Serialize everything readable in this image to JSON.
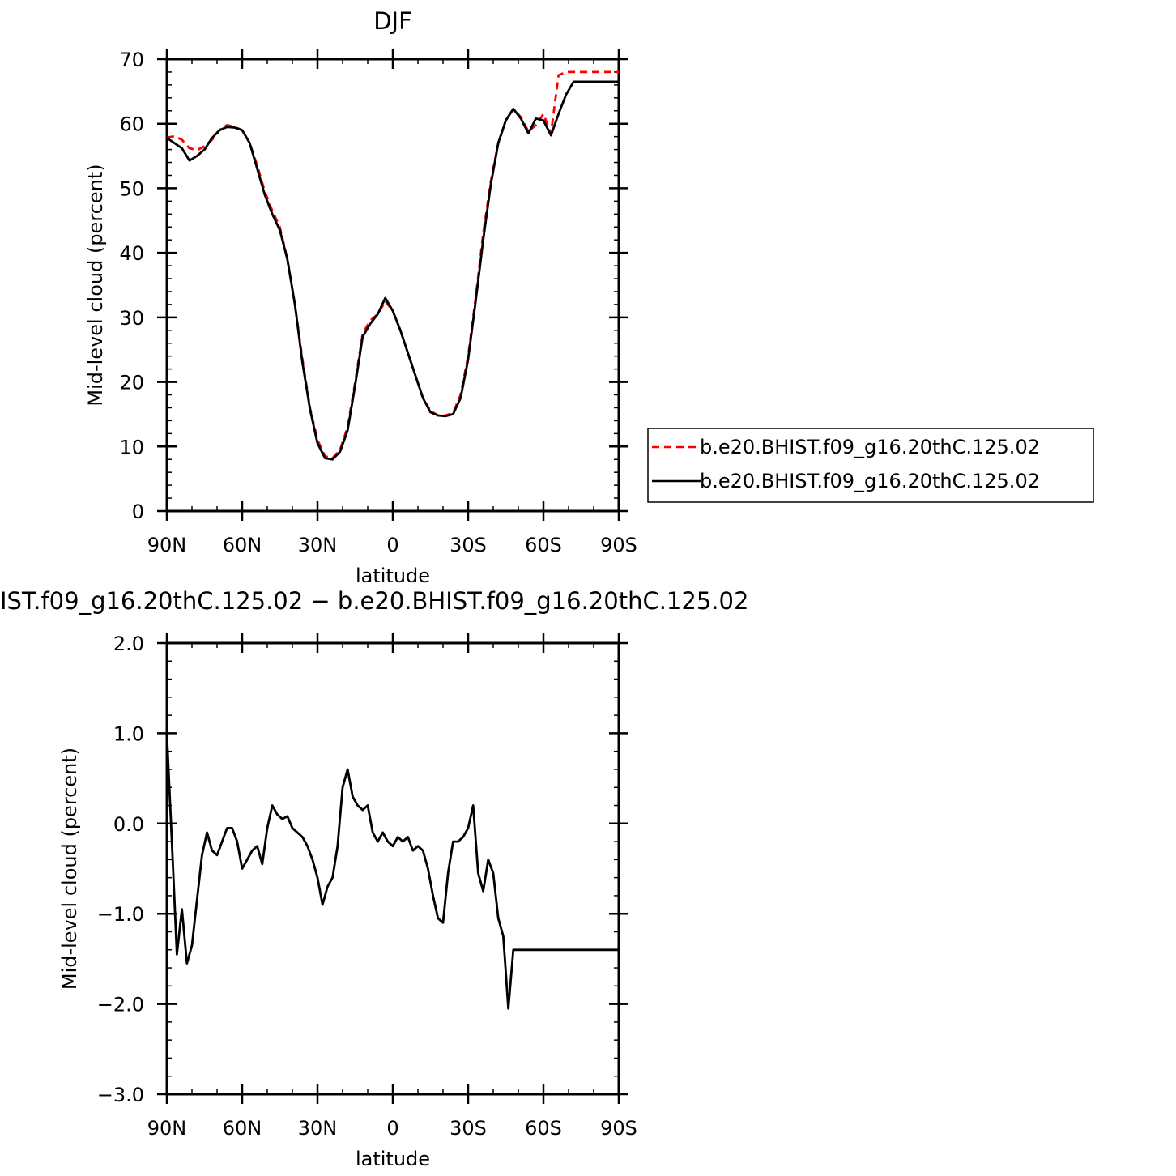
{
  "top_title": "DJF",
  "bottom_title": "IST.f09_g16.20thC.125.02 − b.e20.BHIST.f09_g16.20thC.125.02",
  "legend": [
    {
      "label": "b.e20.BHIST.f09_g16.20thC.125.02",
      "color": "#ff0000",
      "dash": true
    },
    {
      "label": "b.e20.BHIST.f09_g16.20thC.125.02",
      "color": "#000000",
      "dash": false
    }
  ],
  "chart_data": [
    {
      "type": "line",
      "title": "DJF",
      "xlabel": "latitude",
      "ylabel": "Mid-level cloud (percent)",
      "xlim": [
        90,
        -90
      ],
      "ylim": [
        0,
        70
      ],
      "xticks": [
        90,
        60,
        30,
        0,
        -30,
        -60,
        -90
      ],
      "xtick_labels": [
        "90N",
        "60N",
        "30N",
        "0",
        "30S",
        "60S",
        "90S"
      ],
      "yticks": [
        0,
        10,
        20,
        30,
        40,
        50,
        60,
        70
      ],
      "ytick_labels": [
        "0",
        "10",
        "20",
        "30",
        "40",
        "50",
        "60",
        "70"
      ],
      "legend_position": "right",
      "series": [
        {
          "name": "b.e20.BHIST.f09_g16.20thC.125.02",
          "color": "#ff0000",
          "dash": true,
          "x": [
            90,
            87,
            84,
            81,
            78,
            75,
            72,
            69,
            66,
            63,
            60,
            57,
            54,
            51,
            48,
            45,
            42,
            39,
            36,
            33,
            30,
            27,
            24,
            21,
            18,
            15,
            12,
            9,
            6,
            3,
            0,
            -3,
            -6,
            -9,
            -12,
            -15,
            -18,
            -21,
            -24,
            -27,
            -30,
            -33,
            -36,
            -39,
            -42,
            -45,
            -48,
            -51,
            -54,
            -57,
            -60,
            -63,
            -66,
            -69,
            -72,
            -75,
            -78,
            -81,
            -84,
            -87,
            -90
          ],
          "y": [
            57.8,
            58.1,
            57.5,
            56.2,
            55.9,
            56.5,
            57.5,
            59.0,
            59.8,
            59.5,
            59.0,
            57.0,
            53.5,
            49.5,
            46.5,
            44.0,
            39.0,
            32.0,
            23.5,
            16.0,
            11.0,
            8.5,
            8.2,
            9.5,
            13.0,
            20.0,
            27.5,
            29.5,
            30.5,
            32.5,
            31.0,
            28.0,
            24.5,
            21.0,
            17.5,
            15.5,
            14.8,
            14.8,
            15.2,
            18.0,
            24.0,
            33.0,
            43.0,
            51.0,
            57.0,
            60.5,
            62.3,
            61.0,
            58.8,
            59.8,
            61.5,
            58.5,
            67.5,
            68.0,
            68.0,
            68.0,
            68.0,
            68.0,
            68.0,
            68.0,
            68.0
          ]
        },
        {
          "name": "b.e20.BHIST.f09_g16.20thC.125.02",
          "color": "#000000",
          "dash": false,
          "x": [
            90,
            87,
            84,
            81,
            78,
            75,
            72,
            69,
            66,
            63,
            60,
            57,
            54,
            51,
            48,
            45,
            42,
            39,
            36,
            33,
            30,
            27,
            24,
            21,
            18,
            15,
            12,
            9,
            6,
            3,
            0,
            -3,
            -6,
            -9,
            -12,
            -15,
            -18,
            -21,
            -24,
            -27,
            -30,
            -33,
            -36,
            -39,
            -42,
            -45,
            -48,
            -51,
            -54,
            -57,
            -60,
            -63,
            -66,
            -69,
            -72,
            -75,
            -78,
            -81,
            -84,
            -87,
            -90
          ],
          "y": [
            57.8,
            57.0,
            56.2,
            54.3,
            55.0,
            56.0,
            57.8,
            59.0,
            59.5,
            59.4,
            59.0,
            57.0,
            53.0,
            49.0,
            46.0,
            43.5,
            39.0,
            32.0,
            23.0,
            15.8,
            10.5,
            8.2,
            8.0,
            9.2,
            12.5,
            19.5,
            27.0,
            29.0,
            30.5,
            33.0,
            31.0,
            28.0,
            24.5,
            21.0,
            17.5,
            15.3,
            14.8,
            14.7,
            15.0,
            17.5,
            23.5,
            32.5,
            42.0,
            50.5,
            57.0,
            60.5,
            62.3,
            60.8,
            58.5,
            60.8,
            60.5,
            58.2,
            61.5,
            64.5,
            66.5,
            66.5,
            66.5,
            66.5,
            66.5,
            66.5,
            66.5
          ]
        }
      ]
    },
    {
      "type": "line",
      "title": "IST.f09_g16.20thC.125.02 − b.e20.BHIST.f09_g16.20thC.125.02",
      "xlabel": "latitude",
      "ylabel": "Mid-level cloud (percent)",
      "xlim": [
        90,
        -90
      ],
      "ylim": [
        -3.0,
        2.0
      ],
      "xticks": [
        90,
        60,
        30,
        0,
        -30,
        -60,
        -90
      ],
      "xtick_labels": [
        "90N",
        "60N",
        "30N",
        "0",
        "30S",
        "60S",
        "90S"
      ],
      "yticks": [
        -3.0,
        -2.0,
        -1.0,
        0.0,
        1.0,
        2.0
      ],
      "ytick_labels": [
        "−3.0",
        "−2.0",
        "−1.0",
        "0.0",
        "1.0",
        "2.0"
      ],
      "series": [
        {
          "color": "#000000",
          "dash": false,
          "x": [
            90,
            88,
            86,
            84,
            82,
            80,
            78,
            76,
            74,
            72,
            70,
            68,
            66,
            64,
            62,
            60,
            58,
            56,
            54,
            52,
            50,
            48,
            46,
            44,
            42,
            40,
            38,
            36,
            34,
            32,
            30,
            28,
            26,
            24,
            22,
            20,
            18,
            16,
            14,
            12,
            10,
            8,
            6,
            4,
            2,
            0,
            -2,
            -4,
            -6,
            -8,
            -10,
            -12,
            -14,
            -16,
            -18,
            -20,
            -22,
            -24,
            -26,
            -28,
            -30,
            -32,
            -34,
            -36,
            -38,
            -40,
            -42,
            -44,
            -46,
            -48,
            -50,
            -52,
            -54,
            -56,
            -58,
            -60,
            -62,
            -64,
            -66,
            -68,
            -70,
            -72,
            -74,
            -76,
            -78,
            -80,
            -82,
            -84,
            -86,
            -88,
            -90
          ],
          "y": [
            1.0,
            -0.2,
            -1.45,
            -0.95,
            -1.55,
            -1.35,
            -0.85,
            -0.35,
            -0.1,
            -0.3,
            -0.35,
            -0.2,
            -0.05,
            -0.05,
            -0.2,
            -0.5,
            -0.4,
            -0.3,
            -0.25,
            -0.45,
            -0.05,
            0.2,
            0.1,
            0.05,
            0.08,
            -0.05,
            -0.1,
            -0.15,
            -0.25,
            -0.4,
            -0.6,
            -0.9,
            -0.7,
            -0.6,
            -0.25,
            0.4,
            0.6,
            0.3,
            0.2,
            0.15,
            0.2,
            -0.1,
            -0.2,
            -0.1,
            -0.2,
            -0.25,
            -0.15,
            -0.2,
            -0.15,
            -0.3,
            -0.25,
            -0.3,
            -0.5,
            -0.8,
            -1.05,
            -1.1,
            -0.55,
            -0.2,
            -0.2,
            -0.15,
            -0.05,
            0.2,
            -0.55,
            -0.75,
            -0.4,
            -0.55,
            -1.05,
            -1.25,
            -2.05,
            -1.4,
            -1.4,
            -1.4,
            -1.4,
            -1.4,
            -1.4,
            -1.4,
            -1.4,
            -1.4,
            -1.4,
            -1.4,
            -1.4,
            -1.4,
            -1.4,
            -1.4,
            -1.4,
            -1.4,
            -1.4,
            -1.4,
            -1.4,
            -1.4,
            -1.4
          ]
        }
      ]
    }
  ]
}
